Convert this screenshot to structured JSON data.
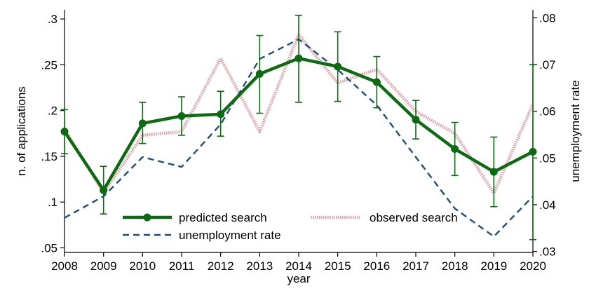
{
  "chart_data": {
    "type": "line",
    "x": [
      2008,
      2009,
      2010,
      2011,
      2012,
      2013,
      2014,
      2015,
      2016,
      2017,
      2018,
      2019,
      2020
    ],
    "x_tick_labels": [
      "2008",
      "2009",
      "2010",
      "2011",
      "2012",
      "2013",
      "2014",
      "2015",
      "2016",
      "2017",
      "2018",
      "2019",
      "2020"
    ],
    "xlabel": "year",
    "ylabel": "n. of applications",
    "y2label": "unemployment rate",
    "ylim": [
      0.045,
      0.31
    ],
    "y2lim": [
      0.0298,
      0.0817
    ],
    "y_ticks": [
      0.05,
      0.1,
      0.15,
      0.2,
      0.25,
      0.3
    ],
    "y_tick_labels": [
      ".05",
      ".1",
      ".15",
      ".2",
      ".25",
      ".3"
    ],
    "y2_ticks": [
      0.03,
      0.04,
      0.05,
      0.06,
      0.07,
      0.08
    ],
    "y2_tick_labels": [
      ".03",
      ".04",
      ".05",
      ".06",
      ".07",
      ".08"
    ],
    "grid": false,
    "legend_position": "bottom-inside",
    "series": [
      {
        "name": "predicted search",
        "axis": "left",
        "style": "solid-markers",
        "color": "#0e6a12",
        "values": [
          0.177,
          0.113,
          0.186,
          0.194,
          0.196,
          0.24,
          0.257,
          0.248,
          0.231,
          0.19,
          0.158,
          0.133,
          0.155
        ],
        "ci_low": [
          0.153,
          0.087,
          0.164,
          0.173,
          0.172,
          0.197,
          0.209,
          0.21,
          0.203,
          0.169,
          0.129,
          0.095,
          0.059
        ],
        "ci_high": [
          0.201,
          0.139,
          0.209,
          0.215,
          0.221,
          0.282,
          0.304,
          0.286,
          0.259,
          0.211,
          0.187,
          0.171,
          0.25
        ]
      },
      {
        "name": "observed search",
        "axis": "left",
        "style": "dotted-thick",
        "color": "#d8a3a8",
        "values": [
          0.18,
          0.11,
          0.173,
          0.177,
          0.257,
          0.177,
          0.283,
          0.23,
          0.245,
          0.199,
          0.175,
          0.11,
          0.207
        ]
      },
      {
        "name": "unemployment rate",
        "axis": "right",
        "style": "dashed",
        "color": "#1f4e79",
        "values": [
          0.0372,
          0.0418,
          0.0502,
          0.0481,
          0.0572,
          0.0712,
          0.0754,
          0.0689,
          0.0613,
          0.0502,
          0.0392,
          0.0332,
          0.0418
        ]
      }
    ],
    "legend": [
      {
        "label": "predicted search"
      },
      {
        "label": "observed search"
      },
      {
        "label": "unemployment rate"
      }
    ]
  }
}
